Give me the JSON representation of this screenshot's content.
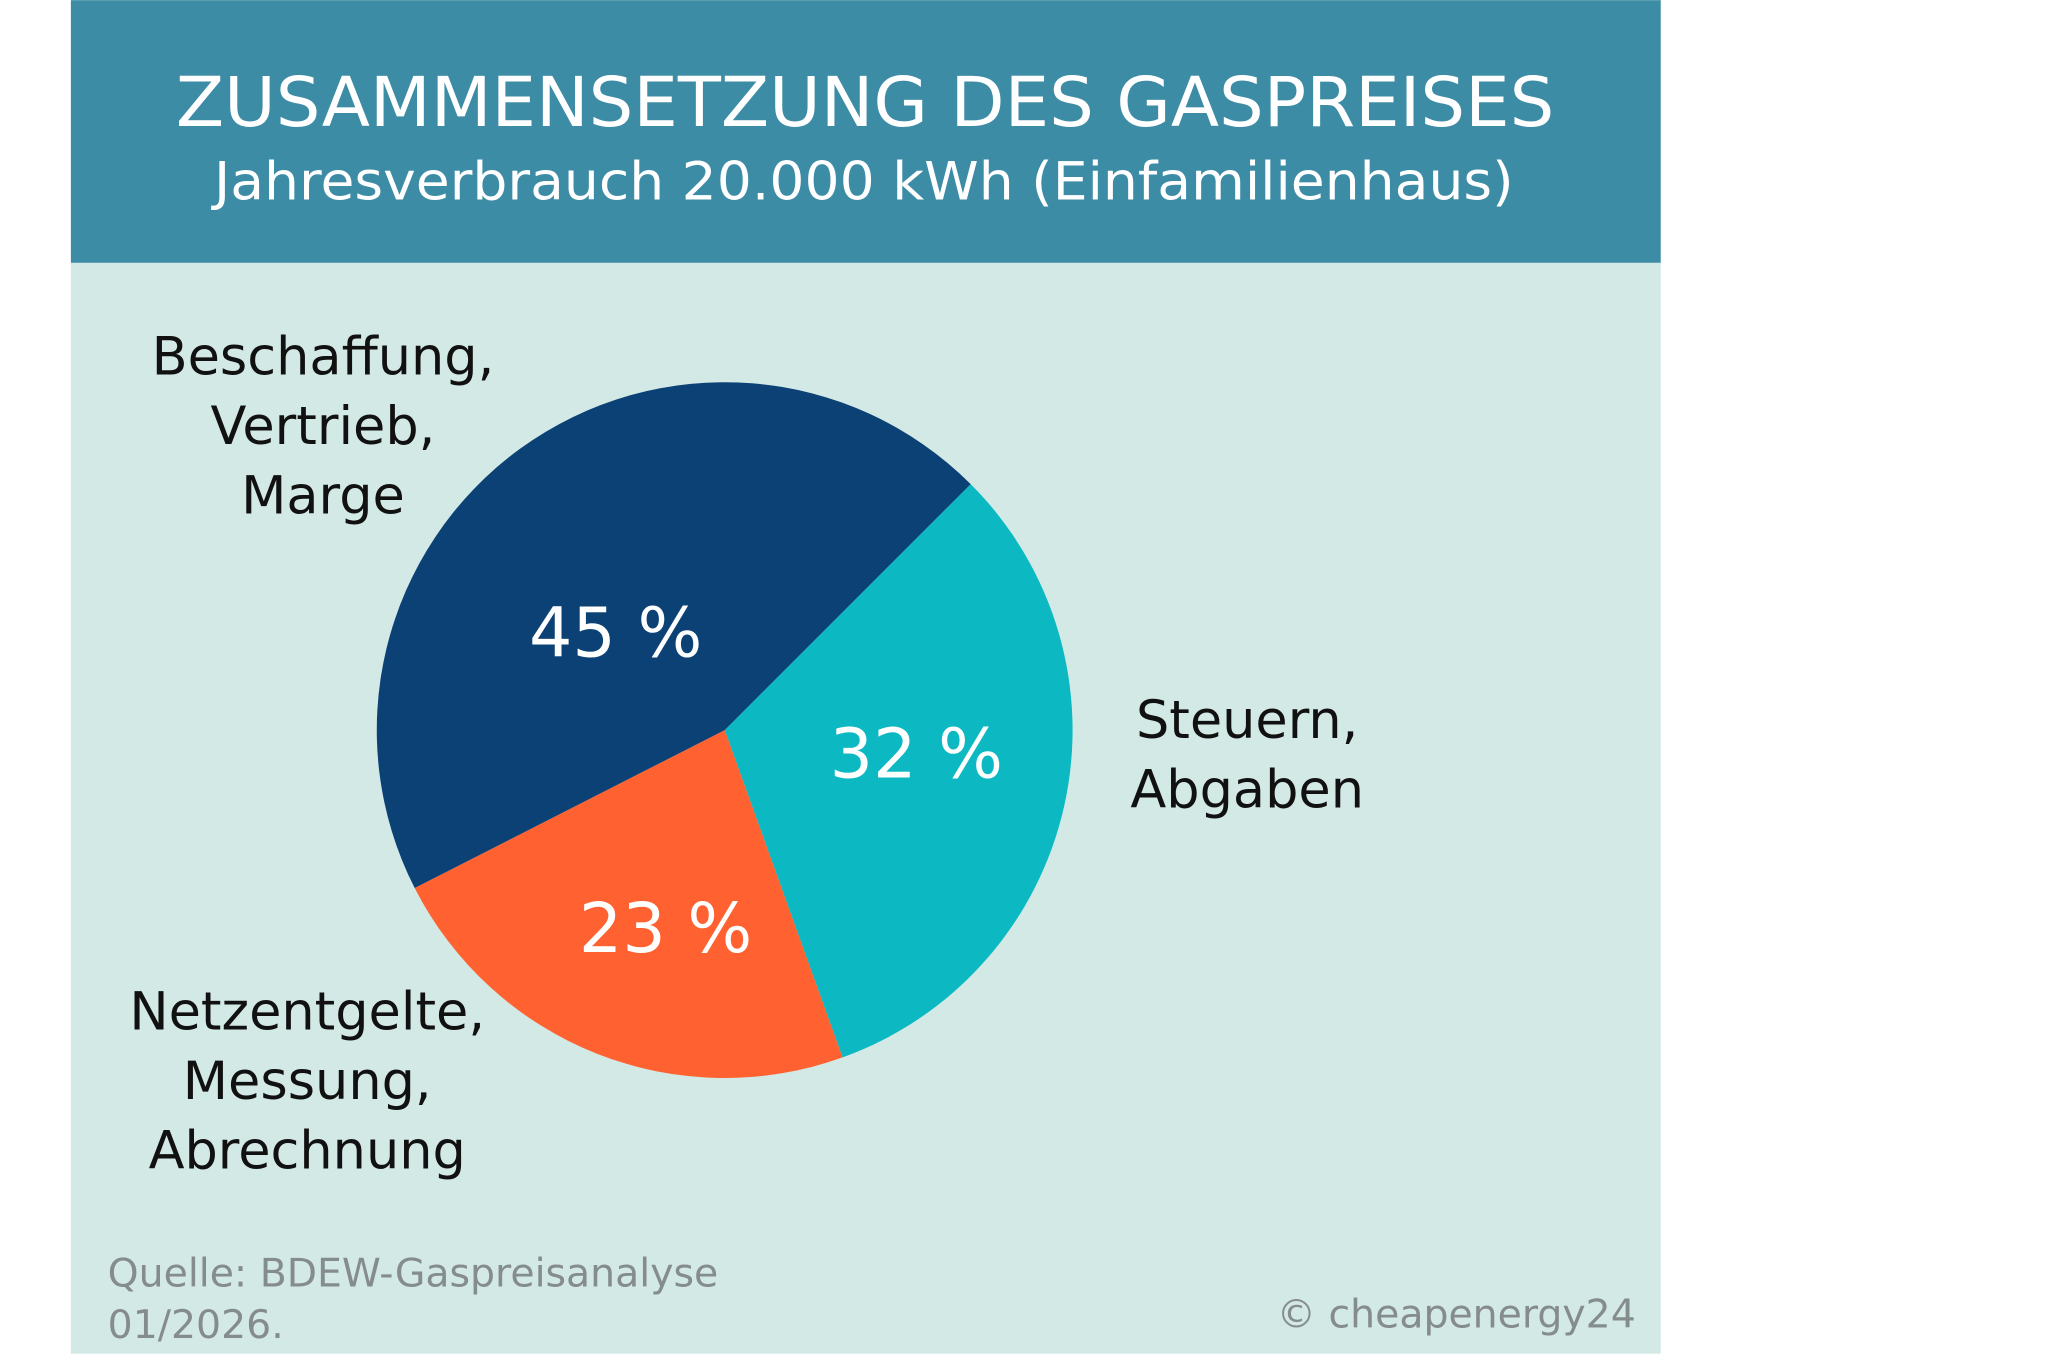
{
  "colors": {
    "header_bg": "#3d8ca6",
    "panel_bg": "#d3e9e6",
    "header_text": "#ffffff",
    "label_text": "#111111",
    "footer_text": "#858c8c"
  },
  "header": {
    "title": "ZUSAMMENSETZUNG DES GASPREISES",
    "subtitle": "Jahresverbrauch 20.000 kWh (Einfamilienhaus)"
  },
  "chart_data": {
    "type": "pie",
    "title": "ZUSAMMENSETZUNG DES GASPREISES",
    "subtitle": "Jahresverbrauch 20.000 kWh (Einfamilienhaus)",
    "unit": "%",
    "slices": [
      {
        "label_lines": [
          "Steuern,",
          "Abgaben"
        ],
        "value": 32,
        "value_label": "32 %",
        "color": "#0cb9c3"
      },
      {
        "label_lines": [
          "Netzentgelte,",
          "Messung,",
          "Abrechnung"
        ],
        "value": 23,
        "value_label": "23 %",
        "color": "#ff6230"
      },
      {
        "label_lines": [
          "Beschaffung,",
          "Vertrieb,",
          "Marge"
        ],
        "value": 45,
        "value_label": "45 %",
        "color": "#0b4175"
      }
    ]
  },
  "footer": {
    "source_line1": "Quelle: BDEW-Gaspreisanalyse",
    "source_line2": "01/2026.",
    "copyright": "© cheapenergy24"
  }
}
